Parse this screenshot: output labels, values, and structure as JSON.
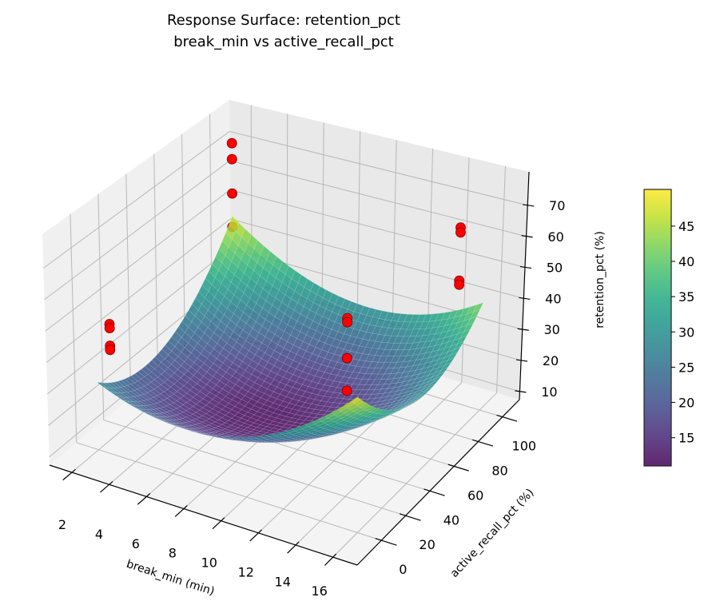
{
  "chart_data": {
    "type": "surface",
    "title": "Response Surface: retention_pct",
    "subtitle": "break_min vs active_recall_pct",
    "xlabel": "break_min (min)",
    "ylabel": "active_recall_pct (%)",
    "zlabel": "retention_pct (%)",
    "xlim": [
      0.8,
      17.3
    ],
    "ylim": [
      -20,
      114
    ],
    "zlim": [
      7.4,
      80.8
    ],
    "xticks": [
      2,
      4,
      6,
      8,
      10,
      12,
      14,
      16
    ],
    "yticks": [
      0,
      20,
      40,
      60,
      80,
      100
    ],
    "zticks": [
      10,
      20,
      30,
      40,
      50,
      60,
      70
    ],
    "grid": true,
    "surface": {
      "colormap": "viridis",
      "x": [
        2,
        5.5,
        9,
        12.5,
        16
      ],
      "y": [
        0,
        25,
        50,
        75,
        100
      ],
      "z": [
        [
          29.0,
          23.1,
          24.5,
          33.3,
          49.5
        ],
        [
          22.2,
          14.6,
          14.4,
          21.6,
          36.1
        ],
        [
          23.1,
          13.9,
          12.0,
          17.5,
          30.3
        ],
        [
          31.7,
          20.8,
          17.3,
          21.1,
          32.3
        ],
        [
          48.0,
          35.5,
          30.3,
          32.5,
          42.0
        ]
      ]
    },
    "scatter": {
      "color": "#ff0000",
      "points": [
        {
          "x": 2,
          "y": 100,
          "z": 72.7
        },
        {
          "x": 2,
          "y": 100,
          "z": 67.3
        },
        {
          "x": 2,
          "y": 100,
          "z": 55.7
        },
        {
          "x": 2,
          "y": 100,
          "z": 44.4
        },
        {
          "x": 2,
          "y": 10,
          "z": 44.2
        },
        {
          "x": 2,
          "y": 10,
          "z": 42.9
        },
        {
          "x": 2,
          "y": 10,
          "z": 37.2
        },
        {
          "x": 2,
          "y": 10,
          "z": 35.9
        },
        {
          "x": 12,
          "y": 50,
          "z": 49.2
        },
        {
          "x": 12,
          "y": 50,
          "z": 47.9
        },
        {
          "x": 12,
          "y": 50,
          "z": 36.4
        },
        {
          "x": 12,
          "y": 50,
          "z": 26.0
        },
        {
          "x": 16,
          "y": 80,
          "z": 73.6
        },
        {
          "x": 16,
          "y": 80,
          "z": 72.0
        },
        {
          "x": 16,
          "y": 80,
          "z": 56.6
        },
        {
          "x": 16,
          "y": 80,
          "z": 55.3
        }
      ]
    },
    "colorbar": {
      "range": [
        11,
        50.2
      ],
      "ticks": [
        15,
        20,
        25,
        30,
        35,
        40,
        45
      ]
    }
  }
}
